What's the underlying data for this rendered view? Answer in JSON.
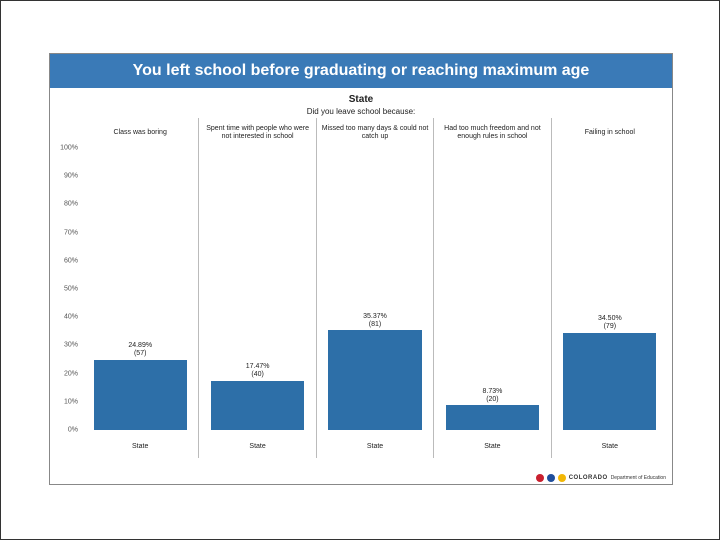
{
  "title": "You left school before graduating or reaching maximum age",
  "subtitle": "State",
  "question": "Did you leave school because:",
  "chart": {
    "type": "bar",
    "ylim": [
      0,
      100
    ],
    "ytick_step": 10,
    "y_suffix": "%",
    "bar_color": "#2d6fa8",
    "background_color": "#ffffff",
    "border_color": "#bbbbbb",
    "title_fontsize": 16,
    "label_fontsize": 7,
    "panels": [
      {
        "header": "Class was boring",
        "value": 24.89,
        "count": 57,
        "x_label": "State"
      },
      {
        "header": "Spent time with people who were not interested in school",
        "value": 17.47,
        "count": 40,
        "x_label": "State"
      },
      {
        "header": "Missed too many days & could not catch up",
        "value": 35.37,
        "count": 81,
        "x_label": "State"
      },
      {
        "header": "Had too much freedom and not enough rules in school",
        "value": 8.73,
        "count": 20,
        "x_label": "State"
      },
      {
        "header": "Failing in school",
        "value": 34.5,
        "count": 79,
        "x_label": "State"
      }
    ]
  },
  "footer": {
    "org": "COLORADO",
    "dept": "Department of Education",
    "logo_colors": [
      "#c9202e",
      "#1f4e9c",
      "#f2b705"
    ]
  }
}
